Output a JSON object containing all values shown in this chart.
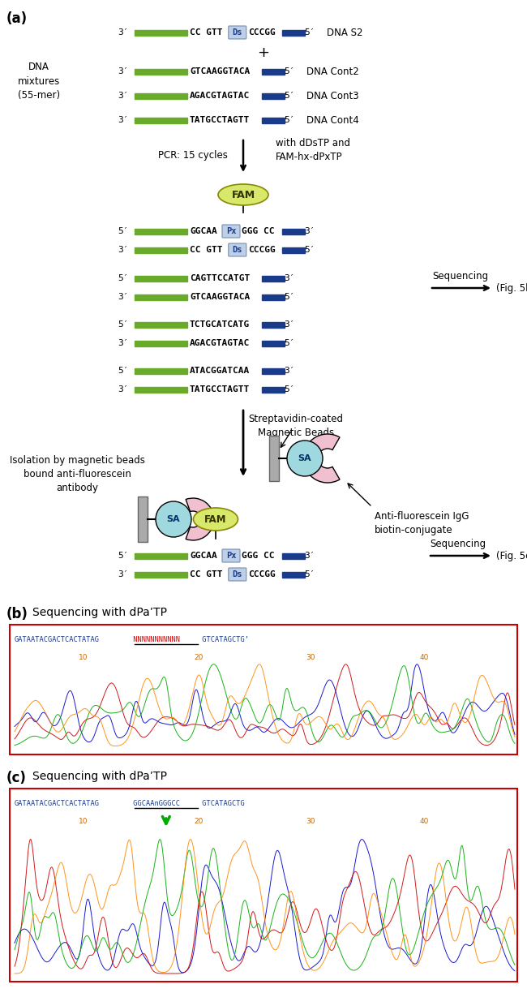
{
  "fig_width": 6.5,
  "fig_height": 12.24,
  "bg_color": "#ffffff",
  "text_color": "#000000",
  "dna_green": "#6aaa2a",
  "dna_blue": "#1a3a8a",
  "ds_box_color": "#c0cfe8",
  "px_box_color": "#c0cfe8",
  "fam_color": "#d8e86a",
  "sa_color": "#a0d8e0",
  "ab_color": "#f0c0d0",
  "bead_color": "#b0b0b0",
  "panel_a_label": "(a)",
  "panel_b_label": "(b)",
  "panel_c_label": "(c)",
  "panel_b_title": "Sequencing with dPa’TP",
  "panel_c_title": "Sequencing with dPa’TP",
  "pcr_text": "PCR: 15 cycles",
  "pcr_note": "with dDsTP and\nFAM-hx-dPxTP",
  "dna_label": "DNA\nmixtures\n(55-mer)",
  "isolation_text": "Isolation by magnetic beads\nbound anti-fluorescein\nantibody",
  "strept_text": "Streptavidin-coated\nMagnetic Beads",
  "anti_text": "Anti-fluorescein IgG\nbiotin-conjugate"
}
